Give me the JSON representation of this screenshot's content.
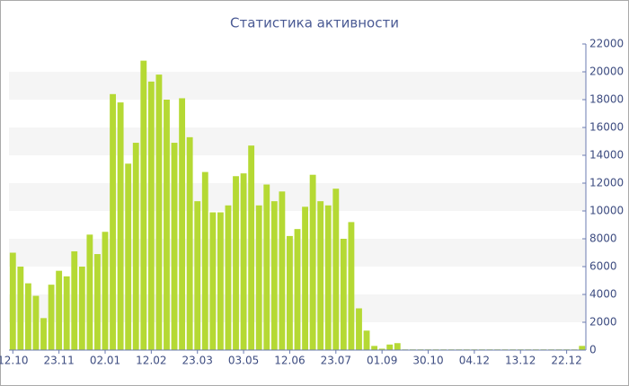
{
  "chart_data": {
    "type": "bar",
    "title": "Статистика активности",
    "categories": [
      "12.10",
      null,
      null,
      null,
      null,
      null,
      "23.11",
      null,
      null,
      null,
      null,
      null,
      "02.01",
      null,
      null,
      null,
      null,
      null,
      "12.02",
      null,
      null,
      null,
      null,
      null,
      "23.03",
      null,
      null,
      null,
      null,
      null,
      "03.05",
      null,
      null,
      null,
      null,
      null,
      "12.06",
      null,
      null,
      null,
      null,
      null,
      "23.07",
      null,
      null,
      null,
      null,
      null,
      "01.09",
      null,
      null,
      null,
      null,
      null,
      "30.10",
      null,
      null,
      null,
      null,
      null,
      "04.12",
      null,
      null,
      null,
      null,
      null,
      "13.12",
      null,
      null,
      null,
      null,
      null,
      "22.12",
      null,
      null
    ],
    "values": [
      7000,
      6000,
      4800,
      3900,
      2300,
      4700,
      5700,
      5300,
      7100,
      6000,
      8300,
      6900,
      8500,
      18400,
      17800,
      13400,
      14900,
      20800,
      19300,
      19800,
      18000,
      14900,
      18100,
      15300,
      10700,
      12800,
      9900,
      9900,
      10400,
      12500,
      12700,
      14700,
      10400,
      11900,
      10700,
      11400,
      8200,
      8700,
      10300,
      12600,
      10700,
      10400,
      11600,
      8000,
      9200,
      3000,
      1400,
      300,
      100,
      400,
      500,
      50,
      50,
      50,
      50,
      50,
      50,
      50,
      50,
      50,
      50,
      50,
      50,
      50,
      50,
      50,
      50,
      50,
      50,
      50,
      50,
      50,
      50,
      50,
      300
    ],
    "color": "#b5d934",
    "ylim": [
      0,
      22000
    ],
    "yticks": [
      0,
      2000,
      4000,
      6000,
      8000,
      10000,
      12000,
      14000,
      16000,
      18000,
      20000,
      22000
    ],
    "grid": "bands"
  }
}
